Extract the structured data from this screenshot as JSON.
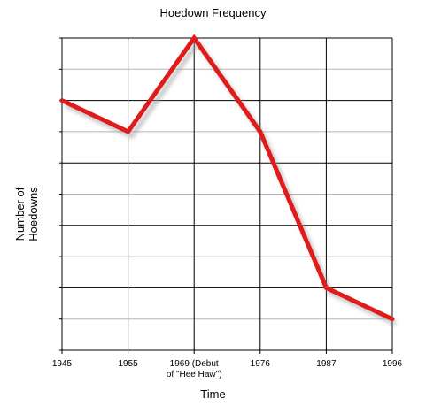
{
  "chart_data": {
    "type": "line",
    "title": "Hoedown Frequency",
    "xlabel": "Time",
    "ylabel": "Number of\nHoedowns",
    "categories": [
      "1945",
      "1955",
      "1969 (Debut\nof \"Hee Haw\")",
      "1976",
      "1987",
      "1996"
    ],
    "values": [
      8,
      7,
      10,
      7,
      2,
      1
    ],
    "ylim": [
      0,
      10
    ],
    "grid": true,
    "line_color": "#e01b1b"
  }
}
